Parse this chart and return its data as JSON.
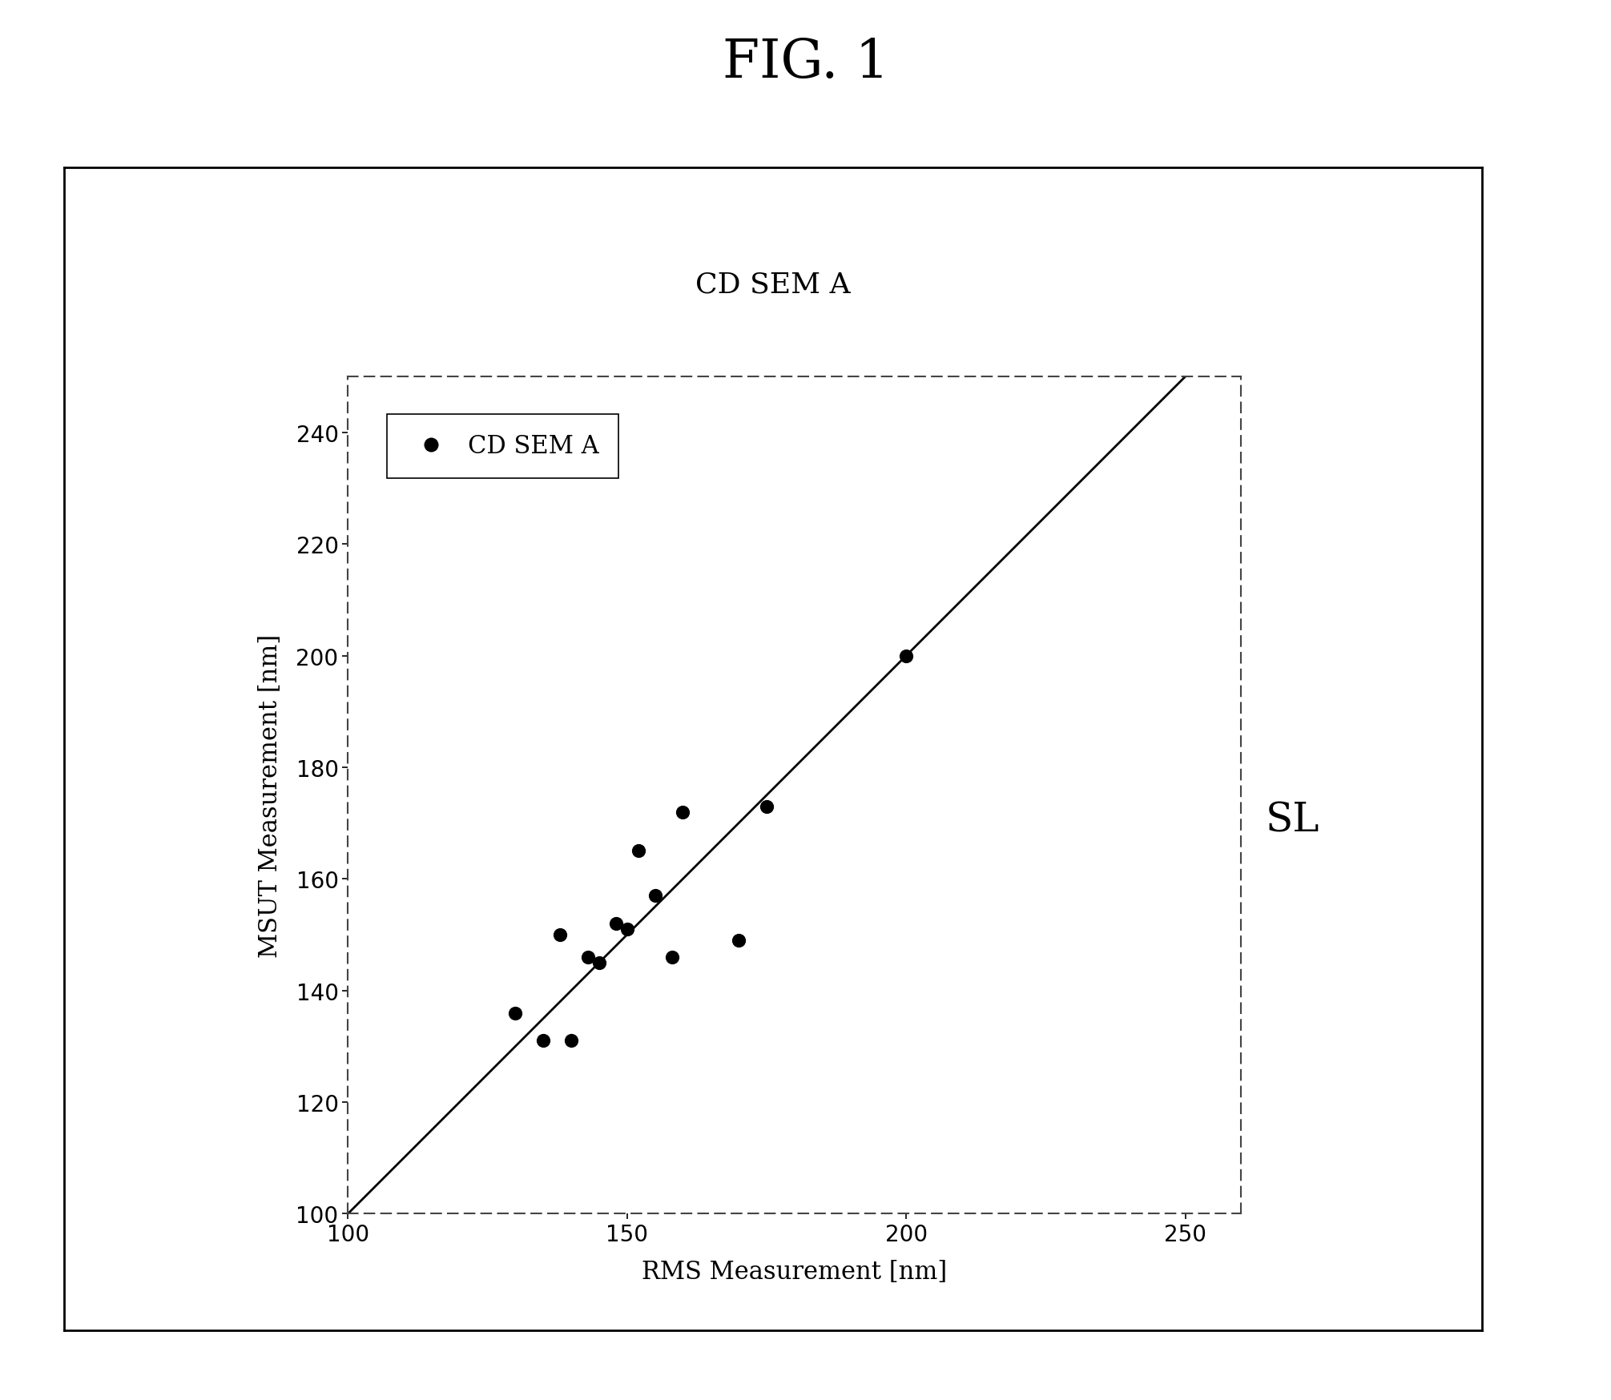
{
  "title": "FIG. 1",
  "subtitle": "CD SEM A",
  "xlabel": "RMS Measurement [nm]",
  "ylabel": "MSUT Measurement [nm]",
  "legend_label": "CD SEM A",
  "sl_label": "SL",
  "xlim": [
    100,
    260
  ],
  "ylim": [
    100,
    250
  ],
  "xticks": [
    100,
    150,
    200,
    250
  ],
  "yticks": [
    100,
    120,
    140,
    160,
    180,
    200,
    220,
    240
  ],
  "scatter_x": [
    130,
    135,
    138,
    140,
    143,
    145,
    148,
    150,
    152,
    155,
    158,
    160,
    170,
    175,
    200
  ],
  "scatter_y": [
    136,
    131,
    150,
    131,
    146,
    145,
    152,
    151,
    165,
    157,
    146,
    172,
    149,
    173,
    200
  ],
  "scatter_color": "#000000",
  "scatter_size": 130,
  "line_color": "#000000",
  "line_x": [
    100,
    250
  ],
  "line_y": [
    100,
    250
  ],
  "background_color": "#ffffff",
  "outer_box_color": "#000000",
  "title_fontsize": 48,
  "subtitle_fontsize": 26,
  "axis_label_fontsize": 22,
  "tick_fontsize": 20,
  "legend_fontsize": 22,
  "sl_fontsize": 36
}
